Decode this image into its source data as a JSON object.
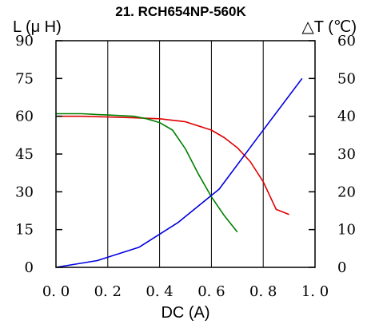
{
  "chart_data": {
    "type": "line",
    "title": "21. RCH654NP-560K",
    "xlabel": "DC (A)",
    "ylabel_left": "L (μ H)",
    "ylabel_right": "△T (℃)",
    "xlim": [
      0,
      1.0
    ],
    "ylim_left": [
      0,
      90
    ],
    "ylim_right": [
      0,
      60
    ],
    "grid": "vertical",
    "x_ticks": [
      "0. 0",
      "0. 2",
      "0. 4",
      "0. 6",
      "0. 8",
      "1. 0"
    ],
    "x_tick_values": [
      0,
      0.2,
      0.4,
      0.6,
      0.8,
      1.0
    ],
    "y_left_ticks": [
      "0",
      "15",
      "30",
      "45",
      "60",
      "75",
      "90"
    ],
    "y_left_tick_values": [
      0,
      15,
      30,
      45,
      60,
      75,
      90
    ],
    "y_right_ticks": [
      "0",
      "10",
      "20",
      "30",
      "40",
      "50",
      "60"
    ],
    "y_right_tick_values": [
      0,
      10,
      20,
      30,
      40,
      50,
      60
    ],
    "series": [
      {
        "color": "#e00000",
        "axis": "left",
        "x": [
          0,
          0.1,
          0.2,
          0.3,
          0.4,
          0.5,
          0.6,
          0.65,
          0.7,
          0.75,
          0.8,
          0.85,
          0.9
        ],
        "y": [
          60,
          60,
          59.7,
          59.4,
          59,
          57.8,
          54.5,
          51.5,
          47.5,
          42,
          34,
          23,
          21
        ]
      },
      {
        "color": "#008000",
        "axis": "left",
        "x": [
          0,
          0.1,
          0.2,
          0.3,
          0.35,
          0.4,
          0.45,
          0.5,
          0.55,
          0.6,
          0.65,
          0.7
        ],
        "y": [
          61,
          61,
          60.5,
          60,
          59,
          57.5,
          54.5,
          47,
          37,
          28,
          20.5,
          14
        ]
      },
      {
        "color": "#0000e0",
        "axis": "right",
        "x": [
          0,
          0.16,
          0.32,
          0.47,
          0.63,
          0.78,
          0.95
        ],
        "y": [
          0,
          1.8,
          5.3,
          11.8,
          20.7,
          34.5,
          50
        ]
      }
    ]
  }
}
